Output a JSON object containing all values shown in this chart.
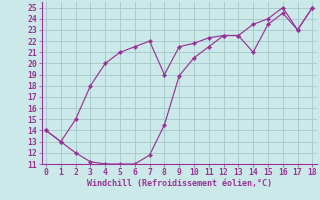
{
  "title": "",
  "xlabel": "Windchill (Refroidissement éolien,°C)",
  "background_color": "#cce9e9",
  "grid_color": "#aacccc",
  "line_color": "#993399",
  "x_line1": [
    0,
    1,
    2,
    3,
    4,
    5,
    6,
    7,
    8,
    9,
    10,
    11,
    12,
    13,
    14,
    15,
    16,
    17,
    18
  ],
  "y_line1": [
    14,
    13,
    15,
    18,
    20,
    21,
    21.5,
    22,
    19,
    21.5,
    21.8,
    22.3,
    22.5,
    22.5,
    23.5,
    24,
    25,
    23,
    25
  ],
  "x_line2": [
    0,
    1,
    2,
    3,
    4,
    5,
    6,
    7,
    8,
    9,
    10,
    11,
    12,
    13,
    14,
    15,
    16,
    17,
    18
  ],
  "y_line2": [
    14,
    13,
    12,
    11.2,
    11,
    11,
    11,
    11.8,
    14.5,
    18.9,
    20.5,
    21.5,
    22.5,
    22.5,
    21,
    23.5,
    24.5,
    23,
    25
  ],
  "xlim": [
    -0.3,
    18.3
  ],
  "ylim": [
    11,
    25.5
  ],
  "xticks": [
    0,
    1,
    2,
    3,
    4,
    5,
    6,
    7,
    8,
    9,
    10,
    11,
    12,
    13,
    14,
    15,
    16,
    17,
    18
  ],
  "yticks": [
    11,
    12,
    13,
    14,
    15,
    16,
    17,
    18,
    19,
    20,
    21,
    22,
    23,
    24,
    25
  ],
  "xlabel_fontsize": 6.0,
  "tick_fontsize": 5.8
}
